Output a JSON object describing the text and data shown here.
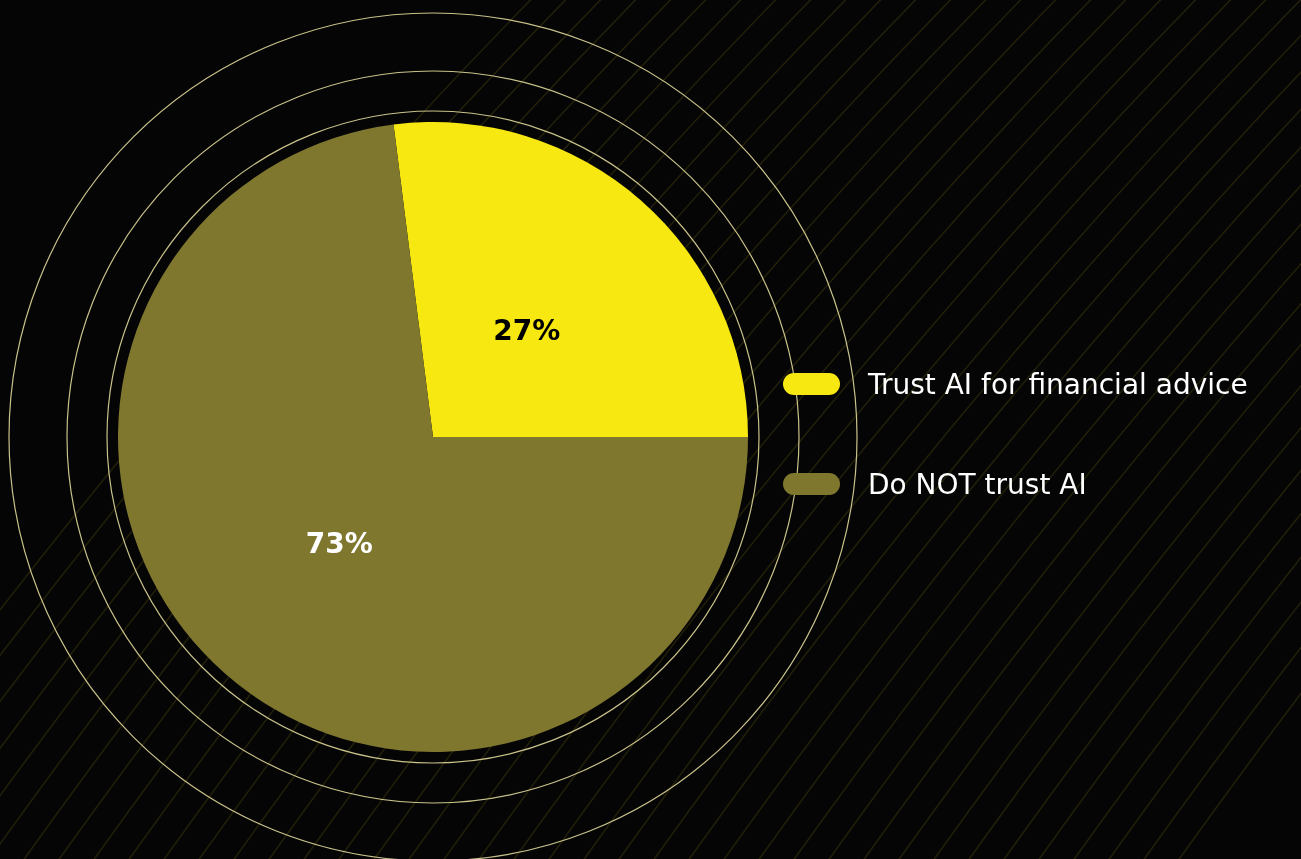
{
  "chart_data": {
    "type": "pie",
    "categories": [
      "Trust AI for financial advice",
      "Do NOT trust AI"
    ],
    "values": [
      27,
      73
    ],
    "colors": [
      "#f7e811",
      "#80772f"
    ],
    "value_labels": [
      "27%",
      "73%"
    ],
    "legend": "right"
  }
}
